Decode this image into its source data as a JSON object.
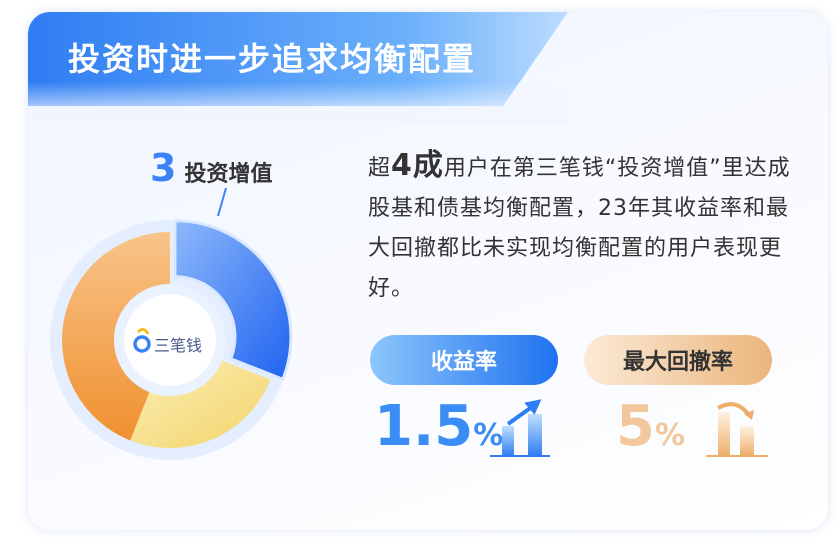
{
  "title": "投资时进一步追求均衡配置",
  "section": {
    "number": "3",
    "label": "投资增值"
  },
  "logo": {
    "text": "三笔钱"
  },
  "description": {
    "pre": "超",
    "highlight": "4成",
    "post": "用户在第三笔钱“投资增值”里达成股基和债基均衡配置，23年其收益率和最大回撤都比未实现均衡配置的用户表现更好。"
  },
  "donut": {
    "segments": [
      {
        "color": "#2f72f3",
        "share": 0.31,
        "highlighted": true
      },
      {
        "color": "#f5dc85",
        "share": 0.25
      },
      {
        "color": "#f29a4a",
        "share": 0.44
      }
    ]
  },
  "metrics": [
    {
      "label": "收益率",
      "value": "1.5",
      "unit": "%",
      "trend": "up",
      "color": "#3a8df5"
    },
    {
      "label": "最大回撤率",
      "value": "5",
      "unit": "%",
      "trend": "down",
      "color": "#f2c79b"
    }
  ]
}
